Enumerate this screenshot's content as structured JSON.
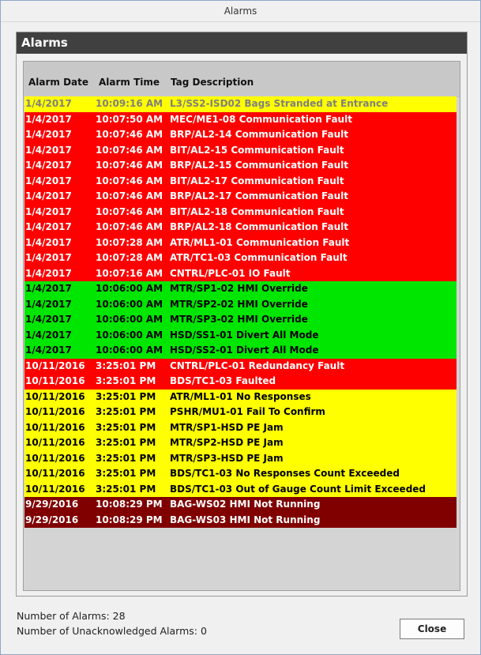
{
  "window": {
    "title": "Alarms"
  },
  "panel": {
    "title": "Alarms"
  },
  "columns": {
    "date": "Alarm Date",
    "time": "Alarm Time",
    "desc": "Tag Description"
  },
  "rows": [
    {
      "date": "1/4/2017",
      "time": "10:09:16 AM",
      "desc": "L3/SS2-ISD02 Bags Stranded at Entrance",
      "style": "sev-yellow-ack"
    },
    {
      "date": "1/4/2017",
      "time": "10:07:50 AM",
      "desc": "MEC/ME1-08 Communication Fault",
      "style": "sev-red"
    },
    {
      "date": "1/4/2017",
      "time": "10:07:46 AM",
      "desc": "BRP/AL2-14 Communication Fault",
      "style": "sev-red"
    },
    {
      "date": "1/4/2017",
      "time": "10:07:46 AM",
      "desc": "BIT/AL2-15 Communication Fault",
      "style": "sev-red"
    },
    {
      "date": "1/4/2017",
      "time": "10:07:46 AM",
      "desc": "BRP/AL2-15 Communication Fault",
      "style": "sev-red"
    },
    {
      "date": "1/4/2017",
      "time": "10:07:46 AM",
      "desc": "BIT/AL2-17 Communication Fault",
      "style": "sev-red"
    },
    {
      "date": "1/4/2017",
      "time": "10:07:46 AM",
      "desc": "BRP/AL2-17 Communication Fault",
      "style": "sev-red"
    },
    {
      "date": "1/4/2017",
      "time": "10:07:46 AM",
      "desc": "BIT/AL2-18 Communication Fault",
      "style": "sev-red"
    },
    {
      "date": "1/4/2017",
      "time": "10:07:46 AM",
      "desc": "BRP/AL2-18 Communication Fault",
      "style": "sev-red"
    },
    {
      "date": "1/4/2017",
      "time": "10:07:28 AM",
      "desc": "ATR/ML1-01 Communication Fault",
      "style": "sev-red"
    },
    {
      "date": "1/4/2017",
      "time": "10:07:28 AM",
      "desc": "ATR/TC1-03 Communication Fault",
      "style": "sev-red"
    },
    {
      "date": "1/4/2017",
      "time": "10:07:16 AM",
      "desc": "CNTRL/PLC-01 IO Fault",
      "style": "sev-red"
    },
    {
      "date": "1/4/2017",
      "time": "10:06:00 AM",
      "desc": "MTR/SP1-02 HMI Override",
      "style": "sev-green"
    },
    {
      "date": "1/4/2017",
      "time": "10:06:00 AM",
      "desc": "MTR/SP2-02 HMI Override",
      "style": "sev-green"
    },
    {
      "date": "1/4/2017",
      "time": "10:06:00 AM",
      "desc": "MTR/SP3-02 HMI Override",
      "style": "sev-green"
    },
    {
      "date": "1/4/2017",
      "time": "10:06:00 AM",
      "desc": "HSD/SS1-01 Divert All Mode",
      "style": "sev-green"
    },
    {
      "date": "1/4/2017",
      "time": "10:06:00 AM",
      "desc": "HSD/SS2-01 Divert All Mode",
      "style": "sev-green"
    },
    {
      "date": "10/11/2016",
      "time": "3:25:01 PM",
      "desc": "CNTRL/PLC-01 Redundancy Fault",
      "style": "sev-red"
    },
    {
      "date": "10/11/2016",
      "time": "3:25:01 PM",
      "desc": "BDS/TC1-03 Faulted",
      "style": "sev-red"
    },
    {
      "date": "10/11/2016",
      "time": "3:25:01 PM",
      "desc": "ATR/ML1-01 No Responses",
      "style": "sev-yellow"
    },
    {
      "date": "10/11/2016",
      "time": "3:25:01 PM",
      "desc": "PSHR/MU1-01 Fail To Confirm",
      "style": "sev-yellow"
    },
    {
      "date": "10/11/2016",
      "time": "3:25:01 PM",
      "desc": "MTR/SP1-HSD PE Jam",
      "style": "sev-yellow"
    },
    {
      "date": "10/11/2016",
      "time": "3:25:01 PM",
      "desc": "MTR/SP2-HSD PE Jam",
      "style": "sev-yellow"
    },
    {
      "date": "10/11/2016",
      "time": "3:25:01 PM",
      "desc": "MTR/SP3-HSD PE Jam",
      "style": "sev-yellow"
    },
    {
      "date": "10/11/2016",
      "time": "3:25:01 PM",
      "desc": "BDS/TC1-03 No Responses Count Exceeded",
      "style": "sev-yellow"
    },
    {
      "date": "10/11/2016",
      "time": "3:25:01 PM",
      "desc": "BDS/TC1-03 Out of Gauge Count Limit Exceeded",
      "style": "sev-yellow"
    },
    {
      "date": "9/29/2016",
      "time": "10:08:29 PM",
      "desc": "BAG-WS02 HMI Not Running",
      "style": "sev-maroon"
    },
    {
      "date": "9/29/2016",
      "time": "10:08:29 PM",
      "desc": "BAG-WS03 HMI Not Running",
      "style": "sev-maroon"
    }
  ],
  "colors": {
    "red": "#ff0000",
    "green": "#00e600",
    "yellow": "#ffff00",
    "maroon": "#800000",
    "header_bar": "#404040"
  },
  "footer": {
    "alarm_count": "Number of Alarms: 28",
    "unack_count": "Number of Unacknowledged Alarms: 0",
    "close_label": "Close"
  }
}
